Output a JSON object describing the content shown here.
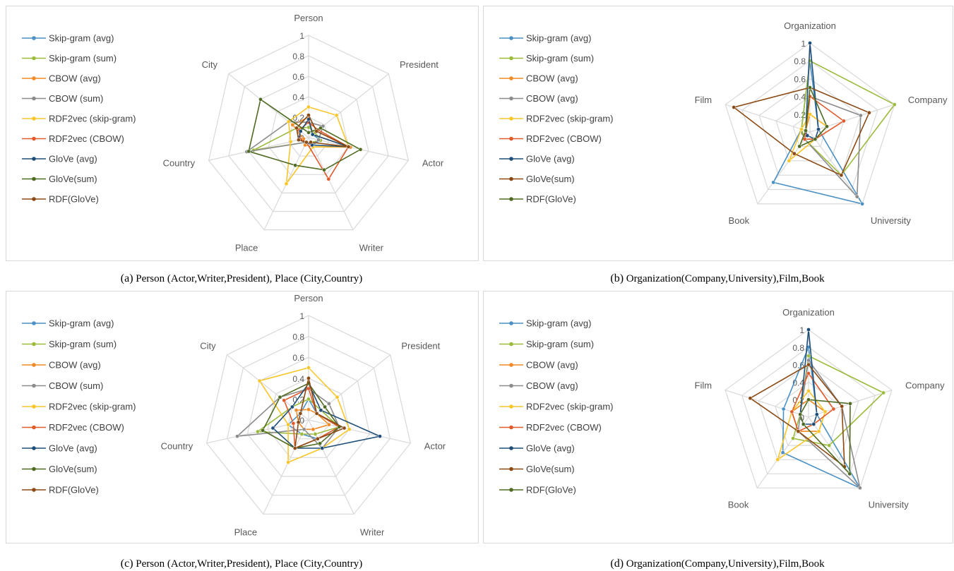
{
  "chart_data": [
    {
      "type": "radar",
      "caption_label": "(a)",
      "caption_text": "Person (Actor,Writer,President), Place (City,Country)",
      "axes": [
        "Person",
        "President",
        "Actor",
        "Writer",
        "Place",
        "Country",
        "City"
      ],
      "rlim": [
        0,
        1
      ],
      "ticks": [
        "0",
        "0.2",
        "0.4",
        "0.6",
        "0.8",
        "1"
      ],
      "legend_position": "left",
      "series": [
        {
          "name": "Skip-gram (avg)",
          "color": "#4a90c4",
          "values": [
            0.22,
            0.05,
            0.12,
            0.08,
            0.05,
            0.1,
            0.15
          ]
        },
        {
          "name": "Skip-gram (sum)",
          "color": "#9bbb3b",
          "values": [
            0.1,
            0.08,
            0.12,
            0.05,
            0.05,
            0.55,
            0.15
          ]
        },
        {
          "name": "CBOW (avg)",
          "color": "#f08a24",
          "values": [
            0.2,
            0.05,
            0.42,
            0.1,
            0.08,
            0.05,
            0.2
          ]
        },
        {
          "name": "CBOW (sum)",
          "color": "#8c8c8c",
          "values": [
            0.15,
            0.18,
            0.1,
            0.08,
            0.05,
            0.62,
            0.25
          ]
        },
        {
          "name": "RDF2vec (skip-gram)",
          "color": "#f8c62a",
          "values": [
            0.3,
            0.35,
            0.4,
            0.1,
            0.5,
            0.18,
            0.25
          ]
        },
        {
          "name": "RDF2vec (CBOW)",
          "color": "#e05a2b",
          "values": [
            0.15,
            0.12,
            0.4,
            0.45,
            0.05,
            0.08,
            0.12
          ]
        },
        {
          "name": "GloVe (avg)",
          "color": "#1f4e79",
          "values": [
            0.18,
            0.05,
            0.4,
            0.08,
            0.05,
            0.1,
            0.1
          ]
        },
        {
          "name": "GloVe(sum)",
          "color": "#4f6b22",
          "values": [
            0.05,
            0.15,
            0.52,
            0.35,
            0.3,
            0.6,
            0.6
          ]
        },
        {
          "name": "RDF(GloVe)",
          "color": "#8b4a14",
          "values": [
            0.22,
            0.1,
            0.4,
            0.05,
            0.05,
            0.1,
            0.15
          ]
        }
      ]
    },
    {
      "type": "radar",
      "caption_label": "(b)",
      "caption_text": "Organization(Company,University),Film,Book",
      "axes": [
        "Organization",
        "Company",
        "University",
        "Book",
        "Film"
      ],
      "rlim": [
        0,
        1
      ],
      "ticks": [
        "0",
        "0.2",
        "0.4",
        "0.6",
        "0.8",
        "1"
      ],
      "legend_position": "left",
      "series": [
        {
          "name": "Skip-gram (avg)",
          "color": "#4a90c4",
          "values": [
            0.8,
            0.1,
            1.0,
            0.7,
            0.1
          ]
        },
        {
          "name": "Skip-gram (sum)",
          "color": "#9bbb3b",
          "values": [
            0.8,
            1.0,
            0.6,
            0.1,
            0.1
          ]
        },
        {
          "name": "CBOW (avg)",
          "color": "#f08a24",
          "values": [
            0.2,
            0.2,
            0.1,
            0.1,
            0.05
          ]
        },
        {
          "name": "CBOW (avg)",
          "color": "#8c8c8c",
          "values": [
            0.4,
            0.6,
            0.9,
            0.1,
            0.05
          ]
        },
        {
          "name": "RDF2vec (skip-gram)",
          "color": "#f8c62a",
          "values": [
            0.2,
            0.2,
            0.1,
            0.4,
            0.1
          ]
        },
        {
          "name": "RDF2vec (CBOW)",
          "color": "#e05a2b",
          "values": [
            0.4,
            0.4,
            0.1,
            0.1,
            0.05
          ]
        },
        {
          "name": "GloVe (avg)",
          "color": "#1f4e79",
          "values": [
            1.0,
            0.1,
            0.1,
            0.05,
            0.05
          ]
        },
        {
          "name": "GloVe(sum)",
          "color": "#8b4a14",
          "values": [
            0.5,
            0.7,
            0.6,
            0.3,
            0.9
          ]
        },
        {
          "name": "RDF(GloVe)",
          "color": "#4f6b22",
          "values": [
            0.5,
            0.2,
            0.1,
            0.2,
            0.05
          ]
        }
      ]
    },
    {
      "type": "radar",
      "caption_label": "(c)",
      "caption_text": "Person (Actor,Writer,President), Place (City,Country)",
      "axes": [
        "Person",
        "President",
        "Actor",
        "Writer",
        "Place",
        "Country",
        "City"
      ],
      "rlim": [
        0,
        1
      ],
      "ticks": [
        "0",
        "0.2",
        "0.4",
        "0.6",
        "0.8",
        "1"
      ],
      "legend_position": "left",
      "series": [
        {
          "name": "Skip-gram (avg)",
          "color": "#4a90c4",
          "values": [
            0.2,
            0.1,
            0.3,
            0.2,
            0.15,
            0.2,
            0.1
          ]
        },
        {
          "name": "Skip-gram (sum)",
          "color": "#9bbb3b",
          "values": [
            0.2,
            0.15,
            0.3,
            0.15,
            0.15,
            0.5,
            0.2
          ]
        },
        {
          "name": "CBOW (avg)",
          "color": "#f08a24",
          "values": [
            0.1,
            0.1,
            0.2,
            0.1,
            0.1,
            0.1,
            0.15
          ]
        },
        {
          "name": "CBOW (sum)",
          "color": "#8c8c8c",
          "values": [
            0.3,
            0.25,
            0.3,
            0.3,
            0.1,
            0.7,
            0.35
          ]
        },
        {
          "name": "RDF2vec (skip-gram)",
          "color": "#f8c62a",
          "values": [
            0.5,
            0.35,
            0.4,
            0.3,
            0.45,
            0.2,
            0.6
          ]
        },
        {
          "name": "RDF2vec (CBOW)",
          "color": "#e05a2b",
          "values": [
            0.3,
            0.1,
            0.3,
            0.2,
            0.3,
            0.15,
            0.3
          ]
        },
        {
          "name": "GloVe (avg)",
          "color": "#1f4e79",
          "values": [
            0.35,
            0.15,
            0.7,
            0.3,
            0.3,
            0.35,
            0.2
          ]
        },
        {
          "name": "GloVe(sum)",
          "color": "#4f6b22",
          "values": [
            0.35,
            0.2,
            0.3,
            0.25,
            0.3,
            0.45,
            0.35
          ]
        },
        {
          "name": "RDF(GloVe)",
          "color": "#8b4a14",
          "values": [
            0.4,
            0.1,
            0.35,
            0.2,
            0.3,
            0.1,
            0.1
          ]
        }
      ]
    },
    {
      "type": "radar",
      "caption_label": "(d)",
      "caption_text": "Organization(Company,University),Film,Book",
      "axes": [
        "Organization",
        "Company",
        "University",
        "Book",
        "Film"
      ],
      "rlim": [
        0,
        1
      ],
      "ticks": [
        "0",
        "0.2",
        "0.4",
        "0.6",
        "0.8",
        "1"
      ],
      "legend_position": "left",
      "series": [
        {
          "name": "Skip-gram (avg)",
          "color": "#4a90c4",
          "values": [
            0.8,
            0.1,
            1.0,
            0.5,
            0.3
          ]
        },
        {
          "name": "Skip-gram (sum)",
          "color": "#9bbb3b",
          "values": [
            0.7,
            0.9,
            0.4,
            0.3,
            0.1
          ]
        },
        {
          "name": "CBOW (avg)",
          "color": "#f08a24",
          "values": [
            0.2,
            0.2,
            0.2,
            0.2,
            0.2
          ]
        },
        {
          "name": "CBOW (avg)",
          "color": "#8c8c8c",
          "values": [
            0.65,
            0.4,
            1.0,
            0.2,
            0.1
          ]
        },
        {
          "name": "RDF2vec (skip-gram)",
          "color": "#f8c62a",
          "values": [
            0.3,
            0.2,
            0.2,
            0.6,
            0.2
          ]
        },
        {
          "name": "RDF2vec (CBOW)",
          "color": "#e05a2b",
          "values": [
            0.5,
            0.3,
            0.1,
            0.2,
            0.2
          ]
        },
        {
          "name": "GloVe (avg)",
          "color": "#1f4e79",
          "values": [
            1.0,
            0.1,
            0.1,
            0.1,
            0.1
          ]
        },
        {
          "name": "GloVe(sum)",
          "color": "#8b4a14",
          "values": [
            0.6,
            0.4,
            0.7,
            0.2,
            0.7
          ]
        },
        {
          "name": "RDF(GloVe)",
          "color": "#4f6b22",
          "values": [
            0.2,
            0.5,
            0.8,
            0.1,
            0.1
          ]
        }
      ]
    }
  ]
}
